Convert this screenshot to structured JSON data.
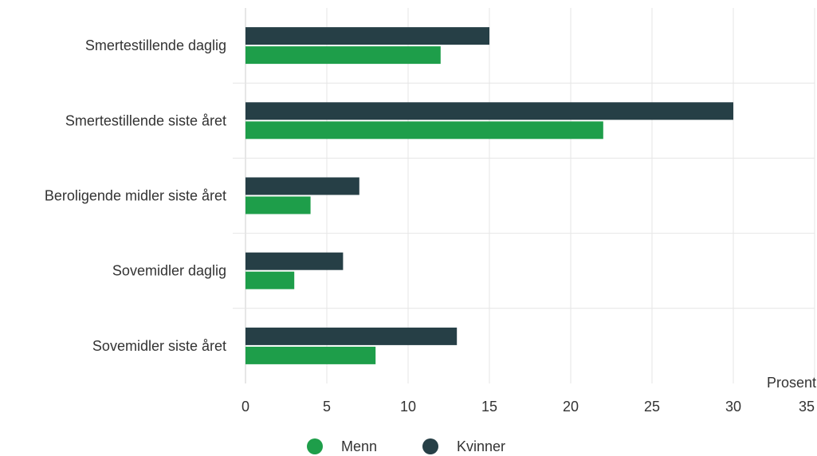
{
  "chart_data": {
    "type": "bar",
    "orientation": "horizontal",
    "categories": [
      "Smertestillende daglig",
      "Smertestillende siste året",
      "Beroligende midler siste året",
      "Sovemidler daglig",
      "Sovemidler siste året"
    ],
    "series": [
      {
        "name": "Kvinner",
        "color": "#263f46",
        "values": [
          15,
          30,
          7,
          6,
          13
        ]
      },
      {
        "name": "Menn",
        "color": "#1e9e4a",
        "values": [
          12,
          22,
          4,
          3,
          8
        ]
      }
    ],
    "xlabel": "Prosent",
    "xlim": [
      0,
      35
    ],
    "xticks": [
      0,
      5,
      10,
      15,
      20,
      25,
      30,
      35
    ],
    "grid": true,
    "legend": {
      "position": "bottom-center",
      "items": [
        {
          "name": "Menn",
          "color": "#1e9e4a"
        },
        {
          "name": "Kvinner",
          "color": "#263f46"
        }
      ]
    }
  }
}
